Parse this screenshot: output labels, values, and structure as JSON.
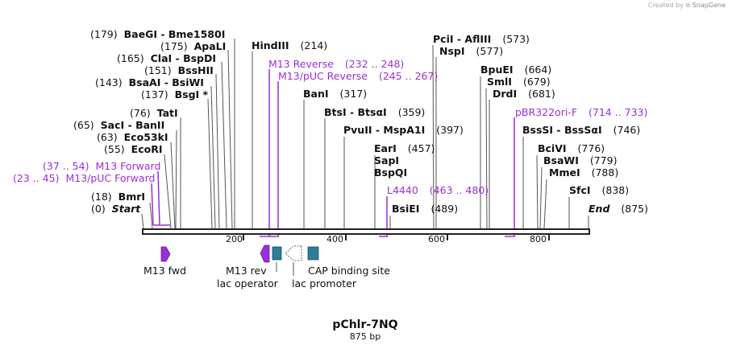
{
  "credit": {
    "prefix": "Created by",
    "brand": "SnapGene"
  },
  "plasmid": {
    "name": "pChlr-7NQ",
    "length": "875 bp",
    "size_bp": 875
  },
  "ticks": [
    "200",
    "400",
    "600",
    "800"
  ],
  "sites": [
    {
      "id": "baegi",
      "pos": "(179)",
      "name": "BaeGI",
      "suffix": " - Bme1580I"
    },
    {
      "id": "apali",
      "pos": "(175)",
      "name": "ApaLI"
    },
    {
      "id": "clai",
      "pos": "(165)",
      "name": "ClaI",
      "suffix": " - BspDI"
    },
    {
      "id": "bsshii",
      "pos": "(151)",
      "name": "BssHII"
    },
    {
      "id": "bsaai",
      "pos": "(143)",
      "name": "BsaAI",
      "suffix": " - BsiWI"
    },
    {
      "id": "bsgi",
      "pos": "(137)",
      "name": "BsgI *"
    },
    {
      "id": "tati",
      "pos": "(76)",
      "name": "TatI"
    },
    {
      "id": "saci",
      "pos": "(65)",
      "name": "SacI",
      "suffix": " - BanII"
    },
    {
      "id": "eco53ki",
      "pos": "(63)",
      "name": "Eco53kI"
    },
    {
      "id": "ecori",
      "pos": "(55)",
      "name": "EcoRI"
    },
    {
      "id": "bmri",
      "pos": "(18)",
      "name": "BmrI"
    },
    {
      "id": "start",
      "pos": "(0)",
      "name": "Start"
    },
    {
      "id": "hindiii",
      "name": "HindIII",
      "pos": "(214)"
    },
    {
      "id": "bani",
      "name": "BanI",
      "pos": "(317)"
    },
    {
      "id": "btsi",
      "name": "BtsI",
      "suffix": " - BtsαI",
      "pos": "(359)"
    },
    {
      "id": "pvuii",
      "name": "PvuII",
      "suffix": " - MspA1I",
      "pos": "(397)"
    },
    {
      "id": "eari",
      "name": "EarI",
      "pos": "(457)"
    },
    {
      "id": "sapi",
      "name": "SapI"
    },
    {
      "id": "bspqi",
      "name": "BspQI"
    },
    {
      "id": "bsiei",
      "name": "BsiEI",
      "pos": "(489)"
    },
    {
      "id": "pcii",
      "name": "PciI",
      "suffix": " - AflIII",
      "pos": "(573)"
    },
    {
      "id": "nspi",
      "name": "NspI",
      "pos": "(577)"
    },
    {
      "id": "bpuei",
      "name": "BpuEI",
      "pos": "(664)"
    },
    {
      "id": "smli",
      "name": "SmlI",
      "pos": "(679)"
    },
    {
      "id": "drdi",
      "name": "DrdI",
      "pos": "(681)"
    },
    {
      "id": "bsssi",
      "name": "BssSI",
      "suffix": " - BssSαI",
      "pos": "(746)"
    },
    {
      "id": "bcivi",
      "name": "BciVI",
      "pos": "(776)"
    },
    {
      "id": "bsawi",
      "name": "BsaWI",
      "pos": "(779)"
    },
    {
      "id": "mmei",
      "name": "MmeI",
      "pos": "(788)"
    },
    {
      "id": "sfci",
      "name": "SfcI",
      "pos": "(838)"
    },
    {
      "id": "end",
      "name": "End",
      "pos": "(875)"
    }
  ],
  "primers": [
    {
      "id": "m13fwd",
      "range": "(37 .. 54)",
      "name": "M13 Forward"
    },
    {
      "id": "m13pucf",
      "range": "(23 .. 45)",
      "name": "M13/pUC Forward"
    },
    {
      "id": "m13rev",
      "name": "M13 Reverse",
      "range": "(232 .. 248)"
    },
    {
      "id": "m13pucr",
      "name": "M13/pUC Reverse",
      "range": "(245 .. 267)"
    },
    {
      "id": "l4440",
      "name": "L4440",
      "range": "(463 .. 480)"
    },
    {
      "id": "pbr322",
      "name": "pBR322ori-F",
      "range": "(714 .. 733)"
    }
  ],
  "features": {
    "m13_fwd": "M13 fwd",
    "m13_rev": "M13 rev",
    "lac_operator": "lac operator",
    "lac_promoter": "lac promoter",
    "cap_site": "CAP binding site"
  },
  "colors": {
    "primer": "#9b2fd6",
    "feature_teal": "#2f7d9a",
    "line": "#555555"
  }
}
